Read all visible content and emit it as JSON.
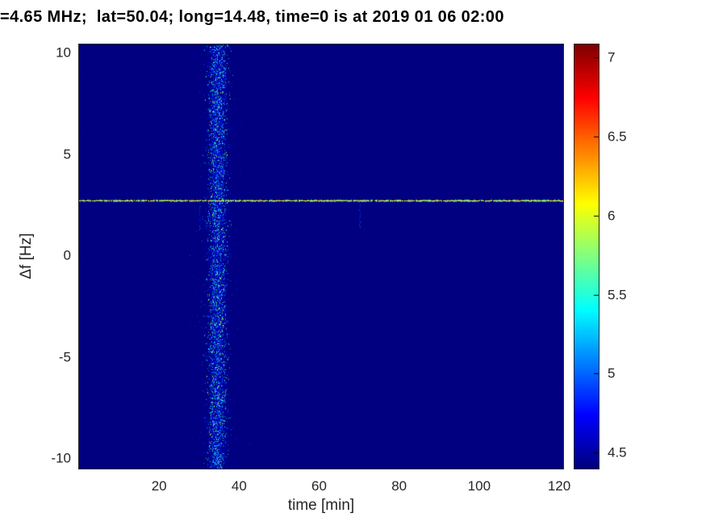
{
  "chart_data": {
    "type": "heatmap",
    "title": "=4.65 MHz;  lat=50.04; long=14.48, time=0 is at 2019 01 06 02:00",
    "xlabel": "time [min]",
    "ylabel": "Δf [Hz]",
    "x_range": [
      0,
      121
    ],
    "y_range": [
      -10.5,
      10.4
    ],
    "x_ticks": [
      20,
      40,
      60,
      80,
      100,
      120
    ],
    "y_ticks": [
      10,
      5,
      0,
      -5,
      -10
    ],
    "colormap": "jet",
    "background_value": 4.4,
    "colorbar": {
      "range": [
        4.4,
        7.08
      ],
      "ticks": [
        7,
        6.5,
        6,
        5.5,
        5,
        4.5
      ]
    },
    "features": {
      "horizontal_line": {
        "freq_hz": 2.7,
        "value": 6.0
      },
      "vertical_band": {
        "time_min": 34.5,
        "sigma_min": 1.4,
        "value_min": 4.55,
        "value_max": 6.0
      },
      "minor_streaks": [
        {
          "time_min": 30
        },
        {
          "time_min": 70
        }
      ]
    }
  }
}
